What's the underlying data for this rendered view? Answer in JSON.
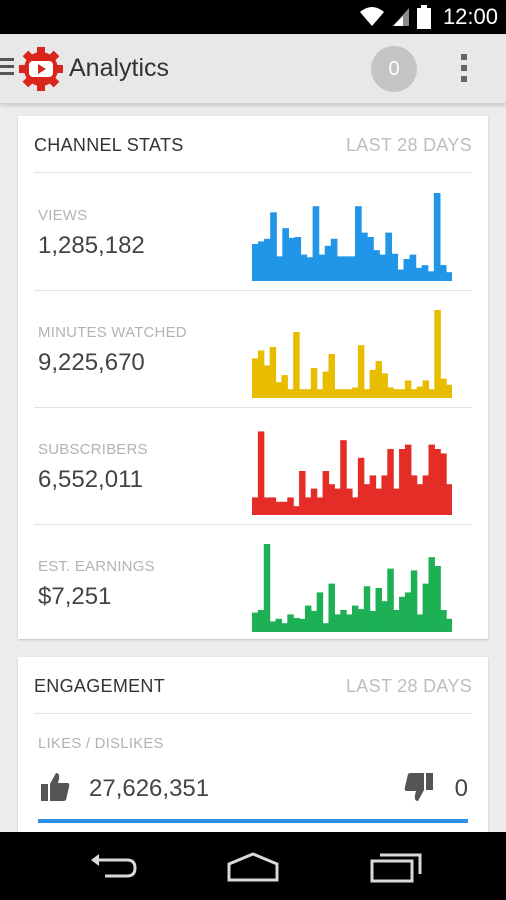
{
  "status_bar": {
    "time": "12:00"
  },
  "app_bar": {
    "title": "Analytics",
    "notification_count": "0"
  },
  "channel_stats": {
    "title": "CHANNEL STATS",
    "range": "LAST 28 DAYS",
    "stats": [
      {
        "label": "VIEWS",
        "value": "1,285,182",
        "color": "#2196e8",
        "bars": [
          0.42,
          0.45,
          0.48,
          0.78,
          0.28,
          0.6,
          0.49,
          0.5,
          0.3,
          0.27,
          0.85,
          0.3,
          0.4,
          0.48,
          0.28,
          0.28,
          0.28,
          0.85,
          0.55,
          0.5,
          0.35,
          0.3,
          0.55,
          0.31,
          0.13,
          0.25,
          0.3,
          0.15,
          0.18,
          0.11,
          1.0,
          0.18,
          0.1
        ]
      },
      {
        "label": "MINUTES WATCHED",
        "value": "9,225,670",
        "color": "#e8bd00",
        "bars": [
          0.45,
          0.54,
          0.37,
          0.58,
          0.18,
          0.26,
          0.1,
          0.75,
          0.1,
          0.1,
          0.34,
          0.1,
          0.3,
          0.5,
          0.1,
          0.1,
          0.1,
          0.12,
          0.6,
          0.1,
          0.32,
          0.42,
          0.28,
          0.12,
          0.1,
          0.1,
          0.2,
          0.1,
          0.13,
          0.2,
          0.1,
          1.0,
          0.22,
          0.15
        ]
      },
      {
        "label": "SUBSCRIBERS",
        "value": "6,552,011",
        "color": "#e52d27",
        "bars": [
          0.2,
          0.95,
          0.2,
          0.2,
          0.15,
          0.15,
          0.2,
          0.1,
          0.5,
          0.2,
          0.3,
          0.2,
          0.5,
          0.35,
          0.3,
          0.85,
          0.3,
          0.2,
          0.65,
          0.35,
          0.45,
          0.3,
          0.45,
          0.75,
          0.3,
          0.75,
          0.8,
          0.45,
          0.35,
          0.45,
          0.8,
          0.75,
          0.7,
          0.35
        ]
      },
      {
        "label": "EST. EARNINGS",
        "value": "$7,251",
        "color": "#1db054",
        "bars": [
          0.22,
          0.25,
          1.0,
          0.12,
          0.15,
          0.1,
          0.2,
          0.16,
          0.15,
          0.3,
          0.24,
          0.45,
          0.1,
          0.55,
          0.2,
          0.25,
          0.2,
          0.3,
          0.26,
          0.52,
          0.24,
          0.5,
          0.35,
          0.72,
          0.25,
          0.4,
          0.45,
          0.7,
          0.2,
          0.55,
          0.85,
          0.75,
          0.25,
          0.15
        ]
      }
    ]
  },
  "engagement": {
    "title": "ENGAGEMENT",
    "range": "LAST 28 DAYS",
    "metric_label": "LIKES / DISLIKES",
    "likes": "27,626,351",
    "dislikes": "0",
    "like_ratio": 1.0
  },
  "icons": [
    "wifi-icon",
    "signal-icon",
    "battery-icon",
    "hamburger-icon",
    "youtube-analytics-logo",
    "overflow-menu-icon",
    "thumbs-up-icon",
    "thumbs-down-icon",
    "back-icon",
    "home-icon",
    "recents-icon"
  ]
}
